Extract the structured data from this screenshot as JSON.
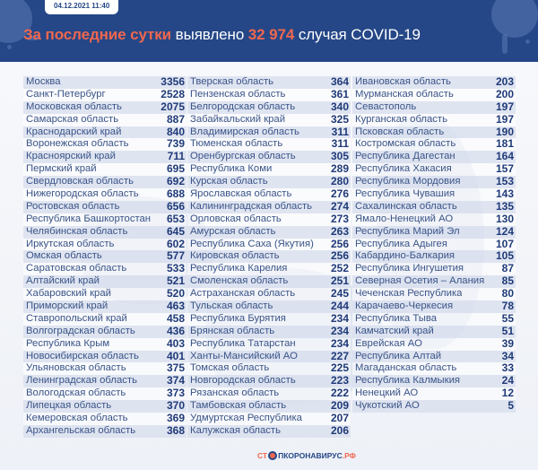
{
  "header": {
    "date": "04.12.2021 11:40",
    "headline_accent": "За последние сутки",
    "headline_mid": " выявлено ",
    "headline_number": "32 974",
    "headline_end": " случая COVID-19",
    "colors": {
      "background": "#254787",
      "accent": "#f0674e",
      "text": "#ffffff"
    }
  },
  "columns": [
    [
      {
        "name": "Москва",
        "value": "3356"
      },
      {
        "name": "Санкт-Петербург",
        "value": "2528"
      },
      {
        "name": "Московская область",
        "value": "2075"
      },
      {
        "name": "Самарская область",
        "value": "887"
      },
      {
        "name": "Краснодарский край",
        "value": "840"
      },
      {
        "name": "Воронежская область",
        "value": "739"
      },
      {
        "name": "Красноярский край",
        "value": "711"
      },
      {
        "name": "Пермский край",
        "value": "695"
      },
      {
        "name": "Свердловская область",
        "value": "692"
      },
      {
        "name": "Нижегородская область",
        "value": "688"
      },
      {
        "name": "Ростовская область",
        "value": "656"
      },
      {
        "name": "Республика Башкортостан",
        "value": "653"
      },
      {
        "name": "Челябинская область",
        "value": "645"
      },
      {
        "name": "Иркутская область",
        "value": "602"
      },
      {
        "name": "Омская область",
        "value": "577"
      },
      {
        "name": "Саратовская область",
        "value": "533"
      },
      {
        "name": "Алтайский край",
        "value": "521"
      },
      {
        "name": "Хабаровский край",
        "value": "520"
      },
      {
        "name": "Приморский край",
        "value": "463"
      },
      {
        "name": "Ставропольский край",
        "value": "458"
      },
      {
        "name": "Волгоградская область",
        "value": "436"
      },
      {
        "name": "Республика Крым",
        "value": "403"
      },
      {
        "name": "Новосибирская область",
        "value": "401"
      },
      {
        "name": "Ульяновская область",
        "value": "375"
      },
      {
        "name": "Ленинградская область",
        "value": "374"
      },
      {
        "name": "Вологодская область",
        "value": "373"
      },
      {
        "name": "Липецкая область",
        "value": "370"
      },
      {
        "name": "Кемеровская область",
        "value": "369"
      },
      {
        "name": "Архангельская область",
        "value": "368"
      }
    ],
    [
      {
        "name": "Тверская область",
        "value": "364"
      },
      {
        "name": "Пензенская область",
        "value": "361"
      },
      {
        "name": "Белгородская область",
        "value": "340"
      },
      {
        "name": "Забайкальский край",
        "value": "325"
      },
      {
        "name": "Владимирская область",
        "value": "311"
      },
      {
        "name": "Тюменская область",
        "value": "311"
      },
      {
        "name": "Оренбургская область",
        "value": "305"
      },
      {
        "name": "Республика Коми",
        "value": "289"
      },
      {
        "name": "Курская область",
        "value": "280"
      },
      {
        "name": "Ярославская область",
        "value": "276"
      },
      {
        "name": "Калининградская область",
        "value": "274"
      },
      {
        "name": "Орловская область",
        "value": "273"
      },
      {
        "name": "Амурская область",
        "value": "263"
      },
      {
        "name": "Республика Саха (Якутия)",
        "value": "256"
      },
      {
        "name": "Кировская область",
        "value": "256"
      },
      {
        "name": "Республика Карелия",
        "value": "252"
      },
      {
        "name": "Смоленская область",
        "value": "251"
      },
      {
        "name": "Астраханская область",
        "value": "245"
      },
      {
        "name": "Тульская область",
        "value": "244"
      },
      {
        "name": "Республика Бурятия",
        "value": "234"
      },
      {
        "name": "Брянская область",
        "value": "234"
      },
      {
        "name": "Республика Татарстан",
        "value": "234"
      },
      {
        "name": "Ханты-Мансийский АО",
        "value": "227"
      },
      {
        "name": "Томская область",
        "value": "225"
      },
      {
        "name": "Новгородская область",
        "value": "223"
      },
      {
        "name": "Рязанская область",
        "value": "222"
      },
      {
        "name": "Тамбовская область",
        "value": "209"
      },
      {
        "name": "Удмуртская Республика",
        "value": "207"
      },
      {
        "name": "Калужская область",
        "value": "206"
      }
    ],
    [
      {
        "name": "Ивановская область",
        "value": "203"
      },
      {
        "name": "Мурманская область",
        "value": "200"
      },
      {
        "name": "Севастополь",
        "value": "197"
      },
      {
        "name": "Курганская область",
        "value": "197"
      },
      {
        "name": "Псковская область",
        "value": "190"
      },
      {
        "name": "Костромская область",
        "value": "181"
      },
      {
        "name": "Республика Дагестан",
        "value": "164"
      },
      {
        "name": "Республика Хакасия",
        "value": "157"
      },
      {
        "name": "Республика Мордовия",
        "value": "153"
      },
      {
        "name": "Республика Чувашия",
        "value": "143"
      },
      {
        "name": "Сахалинская область",
        "value": "135"
      },
      {
        "name": "Ямало-Ненецкий АО",
        "value": "130"
      },
      {
        "name": "Республика Марий Эл",
        "value": "124"
      },
      {
        "name": "Республика Адыгея",
        "value": "107"
      },
      {
        "name": "Кабардино-Балкария",
        "value": "105"
      },
      {
        "name": "Республика Ингушетия",
        "value": "87"
      },
      {
        "name": "Северная Осетия – Алания",
        "value": "85"
      },
      {
        "name": "Чеченская Республика",
        "value": "80"
      },
      {
        "name": "Карачаево-Черкесия",
        "value": "78"
      },
      {
        "name": "Республика Тыва",
        "value": "55"
      },
      {
        "name": "Камчатский край",
        "value": "51"
      },
      {
        "name": "Еврейская АО",
        "value": "39"
      },
      {
        "name": "Республика Алтай",
        "value": "34"
      },
      {
        "name": "Магаданская область",
        "value": "33"
      },
      {
        "name": "Республика Калмыкия",
        "value": "24"
      },
      {
        "name": "Ненецкий АО",
        "value": "12"
      },
      {
        "name": "Чукотский АО",
        "value": "5"
      }
    ]
  ],
  "footer": {
    "logo_part1": "СТ",
    "logo_part2": "ПКОРОНАВИРУС",
    "logo_part3": ".РФ"
  }
}
